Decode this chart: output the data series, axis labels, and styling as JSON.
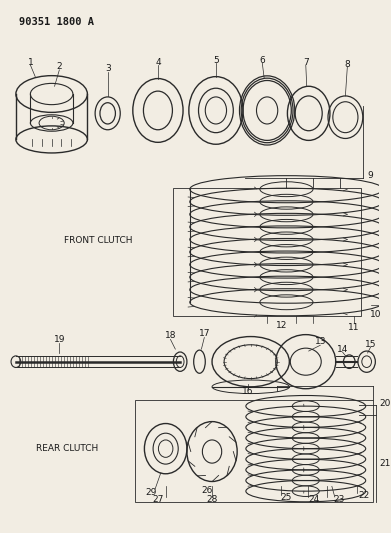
{
  "title": "90351 1800 A",
  "bg_color": "#f2ede3",
  "line_color": "#2a2a2a",
  "text_color": "#1a1a1a",
  "front_clutch_label": "FRONT CLUTCH",
  "rear_clutch_label": "REAR CLUTCH",
  "figsize": [
    3.91,
    5.33
  ],
  "dpi": 100
}
